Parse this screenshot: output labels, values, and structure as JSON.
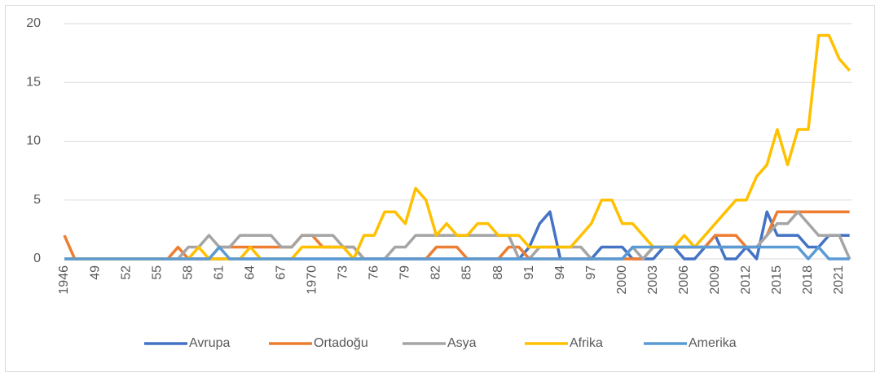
{
  "chart_data": {
    "type": "line",
    "categories": [
      "1946",
      null,
      null,
      "49",
      null,
      null,
      "52",
      null,
      null,
      "55",
      null,
      null,
      "58",
      null,
      null,
      "61",
      null,
      null,
      "64",
      null,
      null,
      "67",
      null,
      null,
      "1970",
      null,
      null,
      "73",
      null,
      null,
      "76",
      null,
      null,
      "79",
      null,
      null,
      "82",
      null,
      null,
      "85",
      null,
      null,
      "88",
      null,
      null,
      "91",
      null,
      null,
      "94",
      null,
      null,
      "97",
      null,
      null,
      "2000",
      null,
      null,
      "2003",
      null,
      null,
      "2006",
      null,
      null,
      "2009",
      null,
      null,
      "2012",
      null,
      null,
      "2015",
      null,
      null,
      "2018",
      null,
      null,
      "2021",
      null
    ],
    "series": [
      {
        "name": "Avrupa",
        "color": "#4472c4",
        "values": [
          0,
          0,
          0,
          0,
          0,
          0,
          0,
          0,
          0,
          0,
          0,
          0,
          0,
          0,
          0,
          0,
          0,
          0,
          0,
          0,
          0,
          0,
          0,
          0,
          0,
          0,
          0,
          0,
          0,
          0,
          0,
          0,
          0,
          0,
          0,
          0,
          0,
          0,
          0,
          0,
          0,
          0,
          0,
          0,
          0,
          1,
          3,
          4,
          0,
          0,
          0,
          0,
          1,
          1,
          1,
          0,
          0,
          0,
          1,
          1,
          0,
          0,
          1,
          2,
          0,
          0,
          1,
          0,
          4,
          2,
          2,
          2,
          1,
          1,
          2,
          2,
          2
        ]
      },
      {
        "name": "Ortadoğu",
        "color": "#ed7d31",
        "values": [
          2,
          0,
          0,
          0,
          0,
          0,
          0,
          0,
          0,
          0,
          0,
          1,
          0,
          0,
          0,
          1,
          1,
          1,
          1,
          1,
          1,
          1,
          1,
          2,
          2,
          1,
          1,
          1,
          1,
          0,
          0,
          0,
          0,
          0,
          0,
          0,
          1,
          1,
          1,
          0,
          0,
          0,
          0,
          1,
          1,
          0,
          0,
          0,
          0,
          0,
          0,
          0,
          0,
          0,
          0,
          0,
          0,
          1,
          1,
          1,
          1,
          1,
          1,
          2,
          2,
          2,
          1,
          1,
          2,
          4,
          4,
          4,
          4,
          4,
          4,
          4,
          4
        ]
      },
      {
        "name": "Asya",
        "color": "#a5a5a5",
        "values": [
          0,
          0,
          0,
          0,
          0,
          0,
          0,
          0,
          0,
          0,
          0,
          0,
          1,
          1,
          2,
          1,
          1,
          2,
          2,
          2,
          2,
          1,
          1,
          2,
          2,
          2,
          2,
          1,
          1,
          0,
          0,
          0,
          1,
          1,
          2,
          2,
          2,
          2,
          2,
          2,
          2,
          2,
          2,
          2,
          0,
          0,
          1,
          1,
          1,
          1,
          1,
          0,
          0,
          0,
          0,
          1,
          0,
          1,
          1,
          1,
          1,
          1,
          1,
          1,
          1,
          1,
          1,
          1,
          2,
          3,
          3,
          4,
          3,
          2,
          2,
          2,
          0
        ]
      },
      {
        "name": "Afrika",
        "color": "#ffc000",
        "values": [
          0,
          0,
          0,
          0,
          0,
          0,
          0,
          0,
          0,
          0,
          0,
          0,
          0,
          1,
          0,
          0,
          0,
          0,
          1,
          0,
          0,
          0,
          0,
          1,
          1,
          1,
          1,
          1,
          0,
          2,
          2,
          4,
          4,
          3,
          6,
          5,
          2,
          3,
          2,
          2,
          3,
          3,
          2,
          2,
          2,
          1,
          1,
          1,
          1,
          1,
          2,
          3,
          5,
          5,
          3,
          3,
          2,
          1,
          1,
          1,
          2,
          1,
          2,
          3,
          4,
          5,
          5,
          7,
          8,
          11,
          8,
          11,
          11,
          19,
          19,
          17,
          16
        ]
      },
      {
        "name": "Amerika",
        "color": "#5b9bd5",
        "values": [
          0,
          0,
          0,
          0,
          0,
          0,
          0,
          0,
          0,
          0,
          0,
          0,
          0,
          0,
          0,
          1,
          0,
          0,
          0,
          0,
          0,
          0,
          0,
          0,
          0,
          0,
          0,
          0,
          0,
          0,
          0,
          0,
          0,
          0,
          0,
          0,
          0,
          0,
          0,
          0,
          0,
          0,
          0,
          0,
          0,
          0,
          0,
          0,
          0,
          0,
          0,
          0,
          0,
          0,
          0,
          1,
          1,
          1,
          1,
          1,
          1,
          1,
          1,
          1,
          1,
          1,
          1,
          1,
          1,
          1,
          1,
          1,
          0,
          1,
          0,
          0,
          0
        ]
      }
    ],
    "ylim": [
      0,
      20
    ],
    "yticks": [
      0,
      5,
      10,
      15,
      20
    ],
    "grid": true,
    "legend": "bottom"
  }
}
